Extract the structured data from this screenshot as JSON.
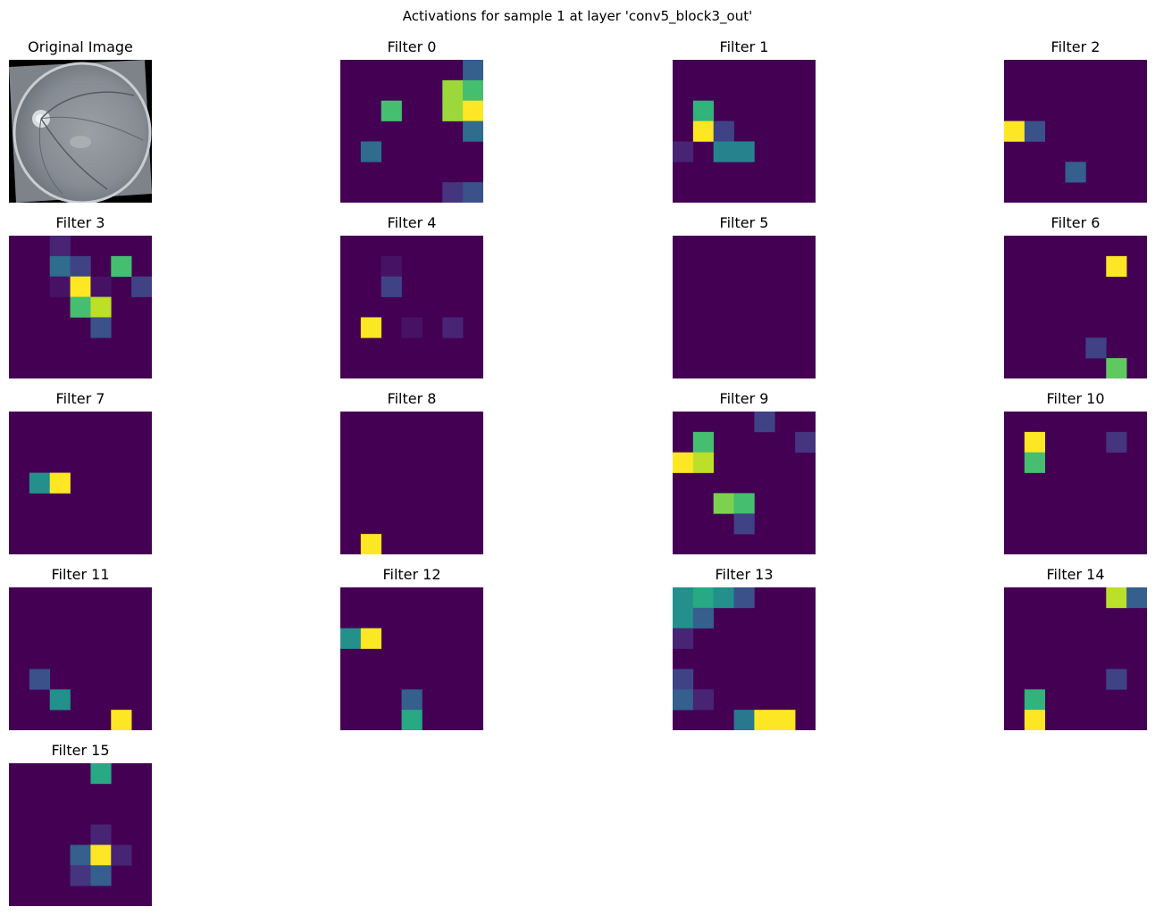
{
  "figure": {
    "suptitle": "Activations for sample 1 at layer 'conv5_block3_out'"
  },
  "colormap": {
    "name": "viridis",
    "background": "#440154",
    "stops": [
      "#440154",
      "#482878",
      "#3e4989",
      "#31688e",
      "#26828e",
      "#1f9e89",
      "#35b779",
      "#6ece58",
      "#b5de2b",
      "#fde725"
    ]
  },
  "chart_data": {
    "type": "heatmap",
    "grid_size": [
      7,
      7
    ],
    "value_range": [
      0,
      1
    ],
    "original_image": {
      "title": "Original Image",
      "description_kind": "grayscale retinal fundus photograph"
    },
    "panels": [
      {
        "title": "Filter 0",
        "cells": [
          {
            "r": 0,
            "c": 6,
            "v": 0.3
          },
          {
            "r": 1,
            "c": 5,
            "v": 0.85
          },
          {
            "r": 1,
            "c": 6,
            "v": 0.7
          },
          {
            "r": 2,
            "c": 2,
            "v": 0.7
          },
          {
            "r": 2,
            "c": 5,
            "v": 0.85
          },
          {
            "r": 2,
            "c": 6,
            "v": 1.0
          },
          {
            "r": 3,
            "c": 6,
            "v": 0.35
          },
          {
            "r": 4,
            "c": 1,
            "v": 0.35
          },
          {
            "r": 6,
            "c": 5,
            "v": 0.15
          },
          {
            "r": 6,
            "c": 6,
            "v": 0.25
          }
        ]
      },
      {
        "title": "Filter 1",
        "cells": [
          {
            "r": 2,
            "c": 1,
            "v": 0.65
          },
          {
            "r": 3,
            "c": 1,
            "v": 1.0
          },
          {
            "r": 3,
            "c": 2,
            "v": 0.2
          },
          {
            "r": 4,
            "c": 0,
            "v": 0.1
          },
          {
            "r": 4,
            "c": 2,
            "v": 0.45
          },
          {
            "r": 4,
            "c": 3,
            "v": 0.45
          }
        ]
      },
      {
        "title": "Filter 2",
        "cells": [
          {
            "r": 3,
            "c": 0,
            "v": 1.0
          },
          {
            "r": 3,
            "c": 1,
            "v": 0.25
          },
          {
            "r": 5,
            "c": 3,
            "v": 0.3
          }
        ]
      },
      {
        "title": "Filter 3",
        "cells": [
          {
            "r": 0,
            "c": 2,
            "v": 0.1
          },
          {
            "r": 1,
            "c": 2,
            "v": 0.35
          },
          {
            "r": 1,
            "c": 3,
            "v": 0.2
          },
          {
            "r": 1,
            "c": 5,
            "v": 0.7
          },
          {
            "r": 2,
            "c": 2,
            "v": 0.05
          },
          {
            "r": 2,
            "c": 3,
            "v": 1.0
          },
          {
            "r": 2,
            "c": 4,
            "v": 0.05
          },
          {
            "r": 2,
            "c": 6,
            "v": 0.2
          },
          {
            "r": 3,
            "c": 3,
            "v": 0.7
          },
          {
            "r": 3,
            "c": 4,
            "v": 0.9
          },
          {
            "r": 4,
            "c": 4,
            "v": 0.25
          }
        ]
      },
      {
        "title": "Filter 4",
        "cells": [
          {
            "r": 1,
            "c": 2,
            "v": 0.05
          },
          {
            "r": 2,
            "c": 2,
            "v": 0.2
          },
          {
            "r": 4,
            "c": 1,
            "v": 1.0
          },
          {
            "r": 4,
            "c": 3,
            "v": 0.05
          },
          {
            "r": 4,
            "c": 5,
            "v": 0.1
          }
        ]
      },
      {
        "title": "Filter 5",
        "cells": []
      },
      {
        "title": "Filter 6",
        "cells": [
          {
            "r": 1,
            "c": 5,
            "v": 1.0
          },
          {
            "r": 5,
            "c": 4,
            "v": 0.2
          },
          {
            "r": 6,
            "c": 5,
            "v": 0.75
          }
        ]
      },
      {
        "title": "Filter 7",
        "cells": [
          {
            "r": 3,
            "c": 1,
            "v": 0.5
          },
          {
            "r": 3,
            "c": 2,
            "v": 1.0
          }
        ]
      },
      {
        "title": "Filter 8",
        "cells": [
          {
            "r": 6,
            "c": 1,
            "v": 1.0
          }
        ]
      },
      {
        "title": "Filter 9",
        "cells": [
          {
            "r": 0,
            "c": 4,
            "v": 0.2
          },
          {
            "r": 1,
            "c": 1,
            "v": 0.7
          },
          {
            "r": 1,
            "c": 6,
            "v": 0.15
          },
          {
            "r": 2,
            "c": 0,
            "v": 1.0
          },
          {
            "r": 2,
            "c": 1,
            "v": 0.9
          },
          {
            "r": 4,
            "c": 2,
            "v": 0.8
          },
          {
            "r": 4,
            "c": 3,
            "v": 0.7
          },
          {
            "r": 5,
            "c": 3,
            "v": 0.2
          }
        ]
      },
      {
        "title": "Filter 10",
        "cells": [
          {
            "r": 1,
            "c": 1,
            "v": 1.0
          },
          {
            "r": 1,
            "c": 5,
            "v": 0.15
          },
          {
            "r": 2,
            "c": 1,
            "v": 0.7
          }
        ]
      },
      {
        "title": "Filter 11",
        "cells": [
          {
            "r": 4,
            "c": 1,
            "v": 0.25
          },
          {
            "r": 5,
            "c": 2,
            "v": 0.5
          },
          {
            "r": 6,
            "c": 5,
            "v": 1.0
          }
        ]
      },
      {
        "title": "Filter 12",
        "cells": [
          {
            "r": 2,
            "c": 0,
            "v": 0.5
          },
          {
            "r": 2,
            "c": 1,
            "v": 1.0
          },
          {
            "r": 5,
            "c": 3,
            "v": 0.3
          },
          {
            "r": 6,
            "c": 3,
            "v": 0.6
          }
        ]
      },
      {
        "title": "Filter 13",
        "cells": [
          {
            "r": 0,
            "c": 0,
            "v": 0.5
          },
          {
            "r": 0,
            "c": 1,
            "v": 0.6
          },
          {
            "r": 0,
            "c": 2,
            "v": 0.5
          },
          {
            "r": 0,
            "c": 3,
            "v": 0.25
          },
          {
            "r": 1,
            "c": 0,
            "v": 0.5
          },
          {
            "r": 1,
            "c": 1,
            "v": 0.3
          },
          {
            "r": 2,
            "c": 0,
            "v": 0.1
          },
          {
            "r": 4,
            "c": 0,
            "v": 0.2
          },
          {
            "r": 5,
            "c": 0,
            "v": 0.3
          },
          {
            "r": 5,
            "c": 1,
            "v": 0.1
          },
          {
            "r": 6,
            "c": 3,
            "v": 0.4
          },
          {
            "r": 6,
            "c": 4,
            "v": 1.0
          },
          {
            "r": 6,
            "c": 5,
            "v": 1.0
          }
        ]
      },
      {
        "title": "Filter 14",
        "cells": [
          {
            "r": 0,
            "c": 5,
            "v": 0.9
          },
          {
            "r": 0,
            "c": 6,
            "v": 0.3
          },
          {
            "r": 4,
            "c": 5,
            "v": 0.2
          },
          {
            "r": 5,
            "c": 1,
            "v": 0.65
          },
          {
            "r": 6,
            "c": 1,
            "v": 1.0
          }
        ]
      },
      {
        "title": "Filter 15",
        "cells": [
          {
            "r": 0,
            "c": 4,
            "v": 0.6
          },
          {
            "r": 3,
            "c": 4,
            "v": 0.1
          },
          {
            "r": 4,
            "c": 3,
            "v": 0.3
          },
          {
            "r": 4,
            "c": 4,
            "v": 1.0
          },
          {
            "r": 4,
            "c": 5,
            "v": 0.1
          },
          {
            "r": 5,
            "c": 3,
            "v": 0.15
          },
          {
            "r": 5,
            "c": 4,
            "v": 0.3
          }
        ]
      }
    ]
  }
}
